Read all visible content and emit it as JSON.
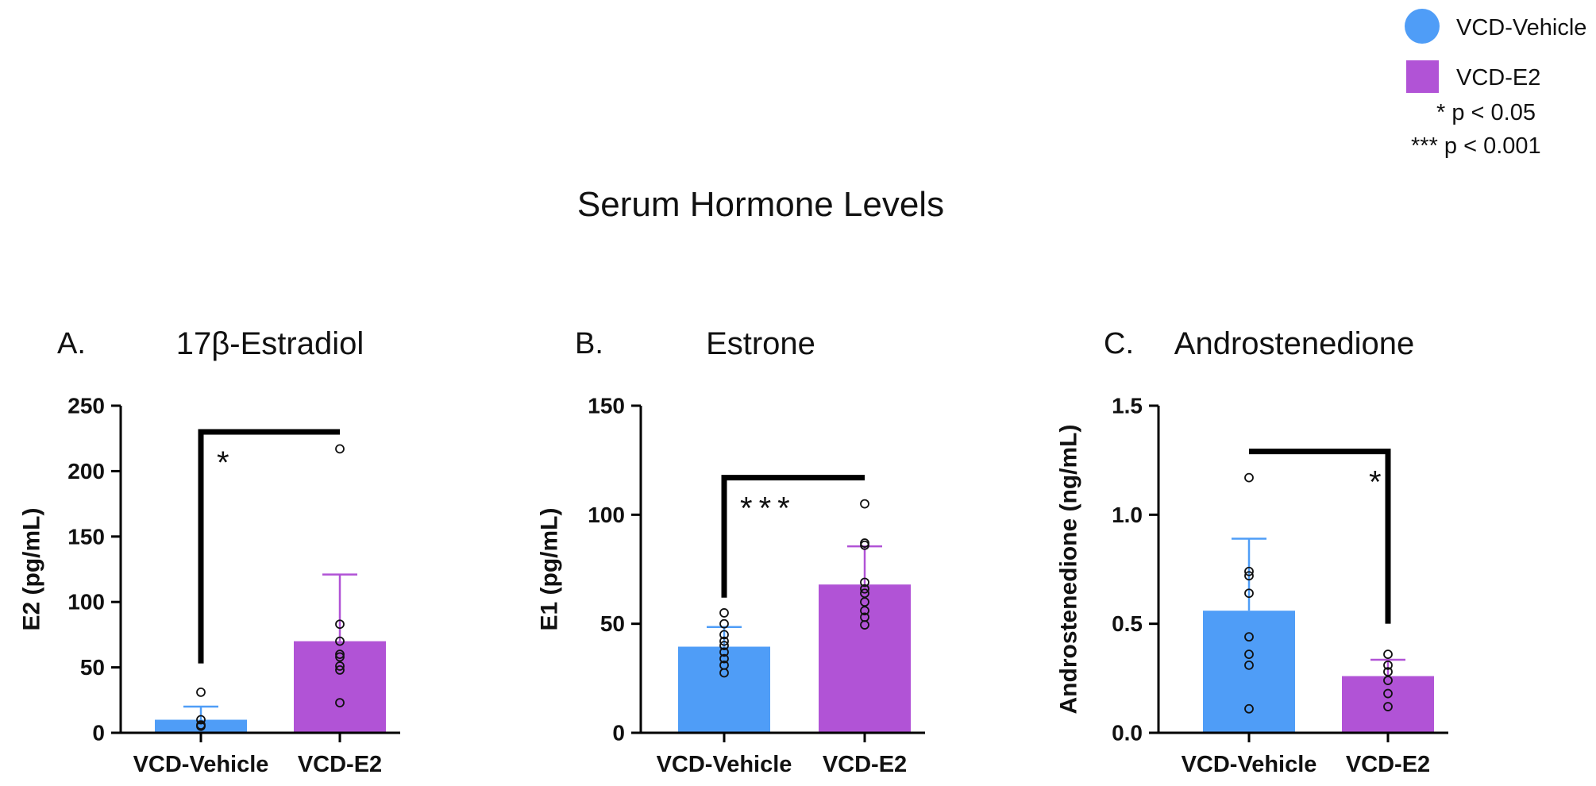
{
  "title": "Serum Hormone Levels",
  "colors": {
    "vehicle": "#4f9df7",
    "e2": "#b153d6",
    "axis": "#000000",
    "bracket": "#000000",
    "point": "#111111"
  },
  "legend": {
    "items": [
      {
        "label": "VCD-Vehicle",
        "shape": "circle",
        "color": "#4f9df7"
      },
      {
        "label": "VCD-E2",
        "shape": "square",
        "color": "#b153d6"
      }
    ],
    "notes": [
      "*  p < 0.05",
      "*** p < 0.001"
    ]
  },
  "chart_data": [
    {
      "type": "bar",
      "panel": "A.",
      "title": "17β-Estradiol",
      "ylabel": "E2 (pg/mL)",
      "ylim": [
        0,
        250
      ],
      "yticks": [
        0,
        50,
        100,
        150,
        200,
        250
      ],
      "ytick_labels": [
        "0",
        "50",
        "100",
        "150",
        "200",
        "250"
      ],
      "categories": [
        "VCD-Vehicle",
        "VCD-E2"
      ],
      "values": [
        10,
        70
      ],
      "errors": [
        10,
        51
      ],
      "points": [
        [
          5,
          6,
          10,
          31
        ],
        [
          23,
          48,
          51,
          58,
          60,
          70,
          83,
          217
        ]
      ],
      "significance": {
        "label": "*",
        "bracket_y": 230,
        "left_end_y": 53,
        "right_end_y": 230,
        "star_side": "left"
      }
    },
    {
      "type": "bar",
      "panel": "B.",
      "title": "Estrone",
      "ylabel": "E1 (pg/mL)",
      "ylim": [
        0,
        150
      ],
      "yticks": [
        0,
        50,
        100,
        150
      ],
      "ytick_labels": [
        "0",
        "50",
        "100",
        "150"
      ],
      "categories": [
        "VCD-Vehicle",
        "VCD-E2"
      ],
      "values": [
        39.5,
        68
      ],
      "errors": [
        9,
        17.5
      ],
      "points": [
        [
          27.5,
          31,
          34,
          37,
          40,
          42,
          45,
          50,
          55
        ],
        [
          49.5,
          53,
          56,
          60,
          64,
          66,
          69,
          86,
          87,
          105
        ]
      ],
      "significance": {
        "label": "***",
        "bracket_y": 117,
        "left_end_y": 62,
        "right_end_y": 117,
        "star_side": "left"
      }
    },
    {
      "type": "bar",
      "panel": "C.",
      "title": "Androstenedione",
      "ylabel": "Androstenedione (ng/mL)",
      "ylim": [
        0,
        1.5
      ],
      "yticks": [
        0,
        0.5,
        1.0,
        1.5
      ],
      "ytick_labels": [
        "0.0",
        "0.5",
        "1.0",
        "1.5"
      ],
      "categories": [
        "VCD-Vehicle",
        "VCD-E2"
      ],
      "values": [
        0.56,
        0.26
      ],
      "errors": [
        0.33,
        0.075
      ],
      "points": [
        [
          0.11,
          0.31,
          0.36,
          0.44,
          0.64,
          0.72,
          0.74,
          1.17
        ],
        [
          0.12,
          0.18,
          0.24,
          0.28,
          0.31,
          0.36
        ]
      ],
      "significance": {
        "label": "*",
        "bracket_y": 1.29,
        "left_end_y": 1.29,
        "right_end_y": 0.5,
        "star_side": "right"
      }
    }
  ]
}
